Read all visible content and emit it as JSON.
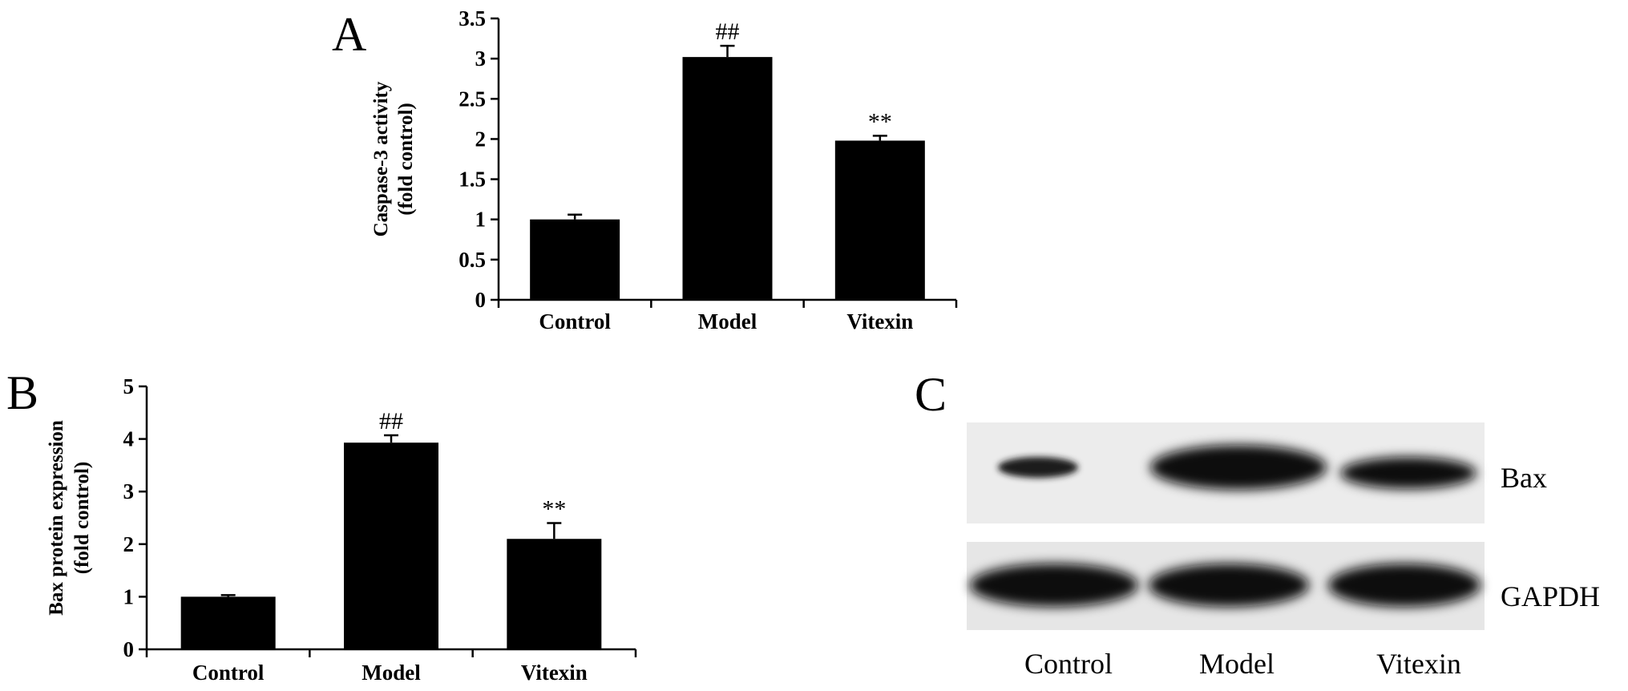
{
  "chart_data": [
    {
      "panel": "A",
      "type": "bar",
      "categories": [
        "Control",
        "Model",
        "Vitexin"
      ],
      "values": [
        1.0,
        3.02,
        1.98
      ],
      "errors": [
        0.06,
        0.14,
        0.06
      ],
      "annotations": [
        "",
        "##",
        "**"
      ],
      "ylabel_lines": [
        "Caspase-3 activity",
        "(fold control)"
      ],
      "yticks": [
        "0",
        "0.5",
        "1",
        "1.5",
        "2",
        "2.5",
        "3",
        "3.5"
      ],
      "ylim": [
        0,
        3.5
      ],
      "bar_color": "#000000"
    },
    {
      "panel": "B",
      "type": "bar",
      "categories": [
        "Control",
        "Model",
        "Vitexin"
      ],
      "values": [
        1.0,
        3.93,
        2.1
      ],
      "errors": [
        0.03,
        0.14,
        0.3
      ],
      "annotations": [
        "",
        "##",
        "**"
      ],
      "ylabel_lines": [
        "Bax protein expression",
        "(fold control)"
      ],
      "yticks": [
        "0",
        "1",
        "2",
        "3",
        "4",
        "5"
      ],
      "ylim": [
        0,
        5
      ],
      "bar_color": "#000000"
    }
  ],
  "blot": {
    "panel": "C",
    "rows": [
      "Bax",
      "GAPDH"
    ],
    "lanes": [
      "Control",
      "Model",
      "Vitexin"
    ]
  }
}
